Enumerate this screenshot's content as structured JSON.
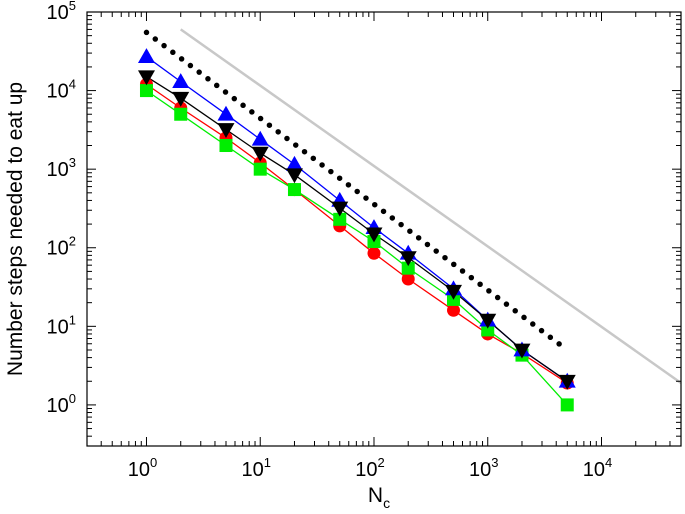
{
  "chart_data": {
    "type": "line",
    "x_scale": "log",
    "y_scale": "log",
    "xlim": [
      0.3,
      50000
    ],
    "ylim": [
      0.3,
      100000
    ],
    "xlabel": {
      "base": "N",
      "sub": "c"
    },
    "ylabel": "Number steps needed to eat up",
    "x_ticks": [
      {
        "base": "10",
        "exp": "0",
        "value": 1
      },
      {
        "base": "10",
        "exp": "1",
        "value": 10
      },
      {
        "base": "10",
        "exp": "2",
        "value": 100
      },
      {
        "base": "10",
        "exp": "3",
        "value": 1000
      },
      {
        "base": "10",
        "exp": "4",
        "value": 10000
      }
    ],
    "y_ticks": [
      {
        "base": "10",
        "exp": "0",
        "value": 1
      },
      {
        "base": "10",
        "exp": "1",
        "value": 10
      },
      {
        "base": "10",
        "exp": "2",
        "value": 100
      },
      {
        "base": "10",
        "exp": "3",
        "value": 1000
      },
      {
        "base": "10",
        "exp": "4",
        "value": 10000
      },
      {
        "base": "10",
        "exp": "5",
        "value": 100000
      }
    ],
    "grid": false,
    "legend": "none",
    "series": [
      {
        "marker": "circle",
        "color": "#ff0000",
        "line": "solid",
        "x": [
          1,
          2,
          5,
          10,
          20,
          50,
          100,
          200,
          500,
          1000,
          2000,
          5000
        ],
        "y": [
          12000,
          6000,
          2500,
          1200,
          550,
          190,
          85,
          40,
          16,
          8,
          4.5,
          1.9
        ]
      },
      {
        "marker": "square",
        "color": "#00ee00",
        "line": "solid",
        "x": [
          1,
          2,
          5,
          10,
          20,
          50,
          100,
          200,
          500,
          1000,
          2000,
          5000
        ],
        "y": [
          10000,
          5000,
          2000,
          1000,
          550,
          230,
          120,
          55,
          22,
          9,
          4.3,
          1.0
        ]
      },
      {
        "marker": "triangle-up",
        "color": "#0000ff",
        "line": "solid",
        "x": [
          1,
          2,
          5,
          10,
          20,
          50,
          100,
          200,
          500,
          1000,
          2000,
          5000
        ],
        "y": [
          27000,
          13000,
          5000,
          2400,
          1150,
          400,
          180,
          85,
          30,
          12,
          5,
          2
        ]
      },
      {
        "marker": "triangle-down",
        "color": "#000000",
        "line": "solid",
        "x": [
          1,
          2,
          5,
          10,
          20,
          50,
          100,
          200,
          500,
          1000,
          2000,
          5000
        ],
        "y": [
          15000,
          8000,
          3200,
          1600,
          850,
          320,
          150,
          75,
          28,
          12,
          5,
          2
        ]
      },
      {
        "marker": "none",
        "color": "#000000",
        "line": "dotted",
        "x": [
          1,
          5000
        ],
        "y": [
          55000,
          5
        ]
      },
      {
        "marker": "none",
        "color": "#c8c8c8",
        "line": "solid",
        "x": [
          2,
          50000
        ],
        "y": [
          60000,
          1.9
        ]
      }
    ]
  }
}
